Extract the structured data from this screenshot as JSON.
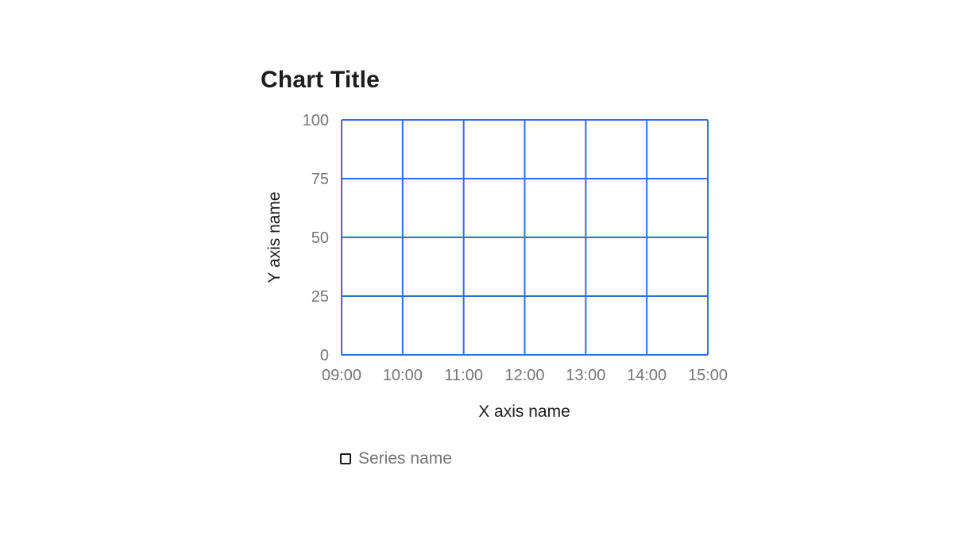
{
  "chart_data": {
    "type": "line",
    "title": "Chart Title",
    "xlabel": "X axis name",
    "ylabel": "Y axis name",
    "x_ticks": [
      "09:00",
      "10:00",
      "11:00",
      "12:00",
      "13:00",
      "14:00",
      "15:00"
    ],
    "y_ticks": [
      0,
      25,
      50,
      75,
      100
    ],
    "xlim": [
      "09:00",
      "15:00"
    ],
    "ylim": [
      0,
      100
    ],
    "grid": true,
    "grid_color": "#2f6fe0",
    "legend_placement": "bottom-left",
    "series": [
      {
        "name": "Series name",
        "values": []
      }
    ]
  }
}
